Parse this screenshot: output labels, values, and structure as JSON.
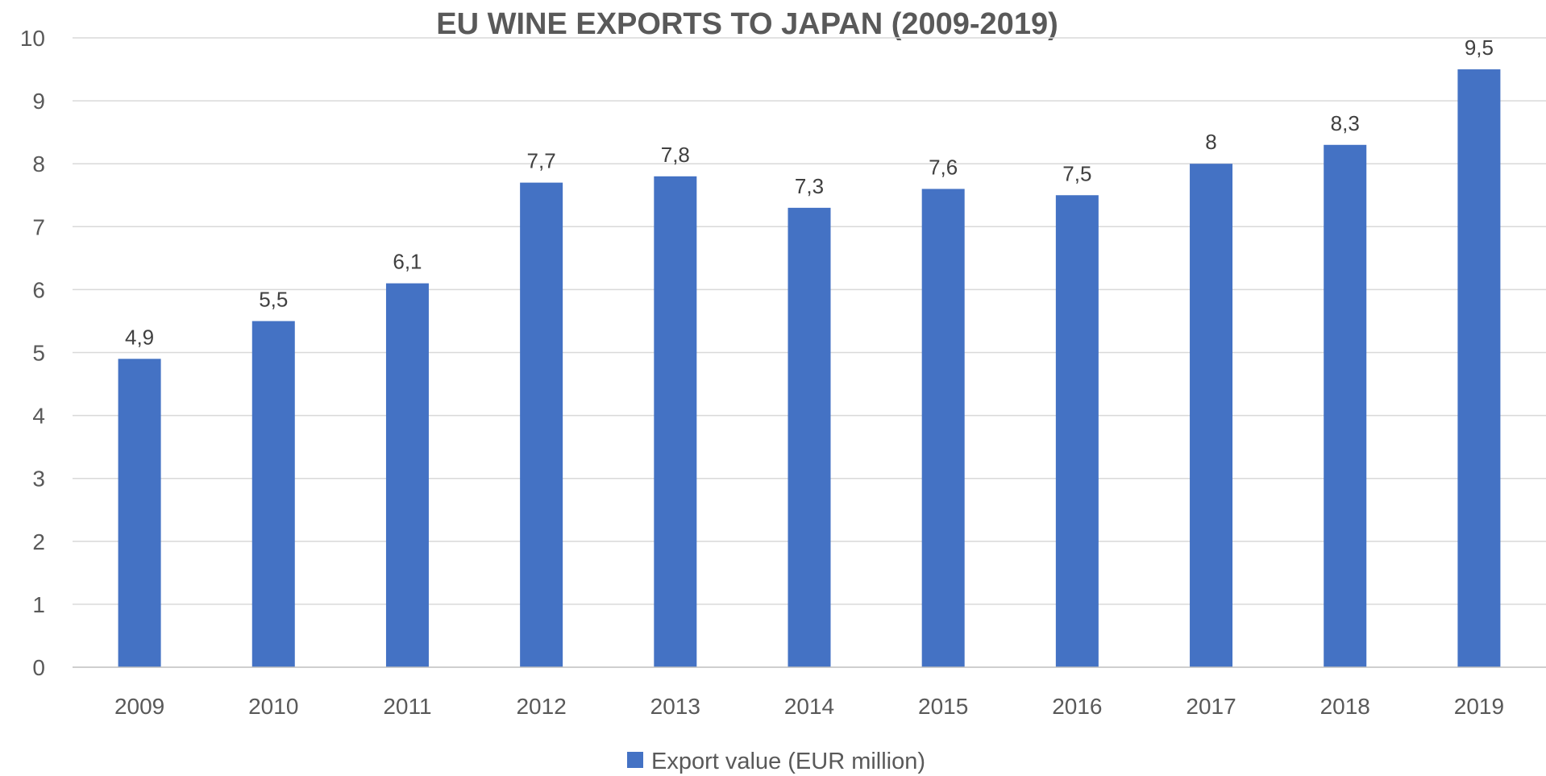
{
  "chart_data": {
    "type": "bar",
    "title": "EU WINE EXPORTS TO JAPAN (2009-2019)",
    "xlabel": "",
    "ylabel": "",
    "categories": [
      "2009",
      "2010",
      "2011",
      "2012",
      "2013",
      "2014",
      "2015",
      "2016",
      "2017",
      "2018",
      "2019"
    ],
    "series": [
      {
        "name": "Export value (EUR million)",
        "values": [
          4.9,
          5.5,
          6.1,
          7.7,
          7.8,
          7.3,
          7.6,
          7.5,
          8,
          8.3,
          9.5
        ],
        "data_labels": [
          "4,9",
          "5,5",
          "6,1",
          "7,7",
          "7,8",
          "7,3",
          "7,6",
          "7,5",
          "8",
          "8,3",
          "9,5"
        ],
        "color": "#4472c4"
      }
    ],
    "ylim": [
      0,
      10
    ],
    "yticks": [
      0,
      1,
      2,
      3,
      4,
      5,
      6,
      7,
      8,
      9,
      10
    ],
    "grid": true,
    "legend": "bottom-center"
  }
}
